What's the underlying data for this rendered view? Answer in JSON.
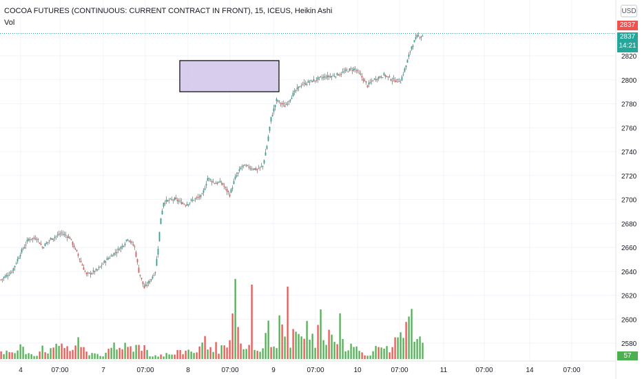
{
  "header": {
    "title": "COCOA FUTURES (CONTINUOUS: CURRENT CONTRACT IN FRONT), 15, ICEUS, Heikin Ashi",
    "volume_label": "Vol",
    "currency_button": "USD"
  },
  "price_scale": {
    "ticks": [
      "2820",
      "2800",
      "2780",
      "2760",
      "2740",
      "2720",
      "2700",
      "2680",
      "2660",
      "2640",
      "2620",
      "2600",
      "2580"
    ],
    "last_price_red": "2837",
    "last_price_green": "2837",
    "countdown": "14:21",
    "volume_value": "57"
  },
  "time_axis": {
    "ticks": [
      "4",
      "07:00",
      "7",
      "07:00",
      "8",
      "07:00",
      "9",
      "07:00",
      "10",
      "07:00",
      "11",
      "07:00",
      "14",
      "07:00"
    ]
  },
  "colors": {
    "up": "#26a69a",
    "down": "#ef5350",
    "vol_up": "#4caf50",
    "vol_down": "#ef5350",
    "highlight_fill": "#d1c4e9",
    "price_line": "#26a69a",
    "grid": "#f0f3fa"
  },
  "chart_data": {
    "type": "candlestick",
    "style": "Heikin Ashi",
    "interval": "15",
    "y_range": [
      2570,
      2850
    ],
    "grid": true,
    "annotation": {
      "type": "rectangle",
      "price_range": [
        2790,
        2816
      ],
      "bar_range": [
        119,
        192
      ]
    },
    "price_path": [
      [
        0,
        2633
      ],
      [
        8,
        2640
      ],
      [
        14,
        2655
      ],
      [
        20,
        2667
      ],
      [
        26,
        2668
      ],
      [
        30,
        2660
      ],
      [
        36,
        2667
      ],
      [
        44,
        2672
      ],
      [
        50,
        2668
      ],
      [
        56,
        2653
      ],
      [
        62,
        2637
      ],
      [
        70,
        2641
      ],
      [
        76,
        2649
      ],
      [
        82,
        2655
      ],
      [
        88,
        2661
      ],
      [
        92,
        2668
      ],
      [
        97,
        2660
      ],
      [
        100,
        2640
      ],
      [
        104,
        2626
      ],
      [
        108,
        2632
      ],
      [
        112,
        2640
      ],
      [
        114,
        2660
      ],
      [
        116,
        2685
      ],
      [
        118,
        2698
      ],
      [
        126,
        2700
      ],
      [
        134,
        2696
      ],
      [
        140,
        2700
      ],
      [
        146,
        2703
      ],
      [
        150,
        2718
      ],
      [
        155,
        2714
      ],
      [
        160,
        2714
      ],
      [
        166,
        2704
      ],
      [
        170,
        2718
      ],
      [
        175,
        2728
      ],
      [
        180,
        2727
      ],
      [
        186,
        2725
      ],
      [
        190,
        2728
      ],
      [
        193,
        2745
      ],
      [
        196,
        2768
      ],
      [
        200,
        2783
      ],
      [
        206,
        2778
      ],
      [
        212,
        2788
      ],
      [
        218,
        2796
      ],
      [
        226,
        2799
      ],
      [
        234,
        2802
      ],
      [
        240,
        2803
      ],
      [
        246,
        2805
      ],
      [
        252,
        2808
      ],
      [
        257,
        2809
      ],
      [
        262,
        2802
      ],
      [
        266,
        2795
      ],
      [
        270,
        2800
      ],
      [
        278,
        2804
      ],
      [
        284,
        2800
      ],
      [
        290,
        2799
      ],
      [
        294,
        2812
      ],
      [
        298,
        2828
      ],
      [
        302,
        2836
      ],
      [
        306,
        2837
      ]
    ],
    "volume_path": [
      [
        0,
        22
      ],
      [
        8,
        12
      ],
      [
        14,
        26
      ],
      [
        20,
        14
      ],
      [
        26,
        12
      ],
      [
        30,
        30
      ],
      [
        36,
        18
      ],
      [
        40,
        24
      ],
      [
        44,
        40
      ],
      [
        50,
        22
      ],
      [
        56,
        34
      ],
      [
        62,
        16
      ],
      [
        70,
        12
      ],
      [
        76,
        10
      ],
      [
        82,
        28
      ],
      [
        88,
        22
      ],
      [
        92,
        45
      ],
      [
        97,
        25
      ],
      [
        100,
        32
      ],
      [
        104,
        30
      ],
      [
        108,
        12
      ],
      [
        112,
        8
      ],
      [
        118,
        10
      ],
      [
        126,
        12
      ],
      [
        134,
        20
      ],
      [
        140,
        18
      ],
      [
        146,
        30
      ],
      [
        150,
        45
      ],
      [
        155,
        28
      ],
      [
        160,
        22
      ],
      [
        166,
        30
      ],
      [
        170,
        130
      ],
      [
        175,
        18
      ],
      [
        180,
        24
      ],
      [
        186,
        14
      ],
      [
        190,
        20
      ],
      [
        193,
        80
      ],
      [
        196,
        60
      ],
      [
        200,
        30
      ],
      [
        206,
        80
      ],
      [
        210,
        28
      ],
      [
        214,
        82
      ],
      [
        218,
        60
      ],
      [
        222,
        70
      ],
      [
        226,
        40
      ],
      [
        234,
        70
      ],
      [
        240,
        58
      ],
      [
        246,
        48
      ],
      [
        252,
        30
      ],
      [
        257,
        25
      ],
      [
        262,
        16
      ],
      [
        266,
        14
      ],
      [
        270,
        18
      ],
      [
        278,
        35
      ],
      [
        284,
        30
      ],
      [
        290,
        45
      ],
      [
        294,
        60
      ],
      [
        298,
        85
      ],
      [
        302,
        55
      ],
      [
        306,
        60
      ]
    ],
    "volume_spikes": [
      [
        171,
        130
      ],
      [
        182,
        150
      ],
      [
        202,
        88
      ],
      [
        208,
        146
      ],
      [
        225,
        90
      ],
      [
        232,
        100
      ],
      [
        246,
        92
      ],
      [
        298,
        101
      ]
    ],
    "bar_count": 307
  }
}
